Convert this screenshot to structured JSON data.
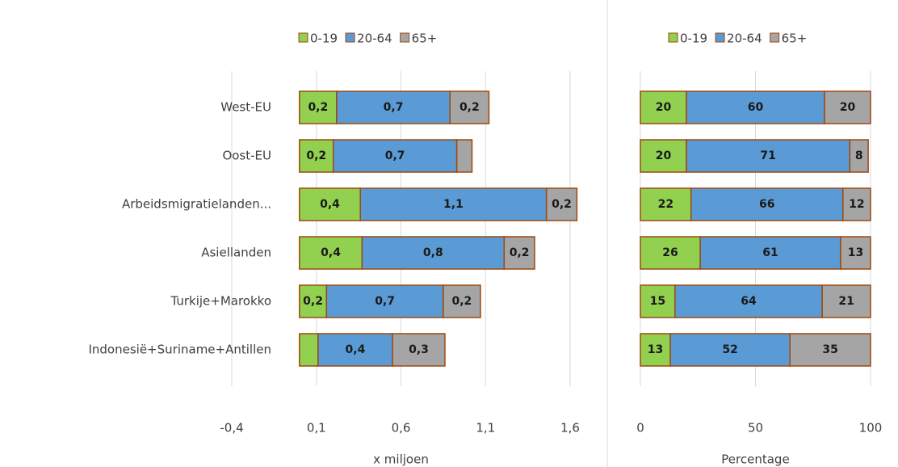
{
  "chart_data": [
    {
      "type": "bar",
      "orientation": "horizontal",
      "stacked": true,
      "categories": [
        "West-EU",
        "Oost-EU",
        "Arbeidsmigratielanden...",
        "Asiellanden",
        "Turkije+Marokko",
        "Indonesië+Suriname+Antillen"
      ],
      "series": [
        {
          "name": "0-19",
          "color": "#92d050",
          "values": [
            0.22,
            0.2,
            0.36,
            0.37,
            0.16,
            0.11
          ],
          "value_labels": [
            "0,2",
            "0,2",
            "0,4",
            "0,4",
            "0,2",
            null
          ]
        },
        {
          "name": "20-64",
          "color": "#5b9bd5",
          "values": [
            0.67,
            0.73,
            1.1,
            0.84,
            0.69,
            0.44
          ],
          "value_labels": [
            "0,7",
            "0,7",
            "1,1",
            "0,8",
            "0,7",
            "0,4"
          ]
        },
        {
          "name": "65+",
          "color": "#a5a5a5",
          "values": [
            0.23,
            0.09,
            0.18,
            0.18,
            0.22,
            0.31
          ],
          "value_labels": [
            "0,2",
            null,
            "0,2",
            "0,2",
            "0,2",
            "0,3"
          ]
        }
      ],
      "xlim": [
        -0.4,
        1.6
      ],
      "xticks": [
        {
          "value": -0.4,
          "label": "-0,4"
        },
        {
          "value": 0.1,
          "label": "0,1"
        },
        {
          "value": 0.6,
          "label": "0,6"
        },
        {
          "value": 1.1,
          "label": "1,1"
        },
        {
          "value": 1.6,
          "label": "1,6"
        }
      ],
      "xlabel": "x miljoen",
      "grid": true
    },
    {
      "type": "bar",
      "orientation": "horizontal",
      "stacked": true,
      "series": [
        {
          "name": "0-19",
          "color": "#92d050",
          "values": [
            20,
            20,
            22,
            26,
            15,
            13
          ]
        },
        {
          "name": "20-64",
          "color": "#5b9bd5",
          "values": [
            60,
            71,
            66,
            61,
            64,
            52
          ]
        },
        {
          "name": "65+",
          "color": "#a5a5a5",
          "values": [
            20,
            8,
            12,
            13,
            21,
            35
          ]
        }
      ],
      "xlim": [
        0,
        100
      ],
      "xticks": [
        0,
        50,
        100
      ],
      "xlabel": "Percentage",
      "grid": true
    }
  ]
}
